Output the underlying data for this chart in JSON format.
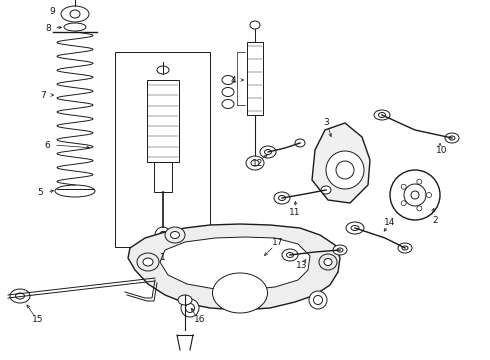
{
  "bg_color": "#ffffff",
  "fig_width": 4.9,
  "fig_height": 3.6,
  "dpi": 100,
  "lc": "#1a1a1a",
  "lw": 0.7,
  "lw2": 1.0,
  "fs": 6.5
}
